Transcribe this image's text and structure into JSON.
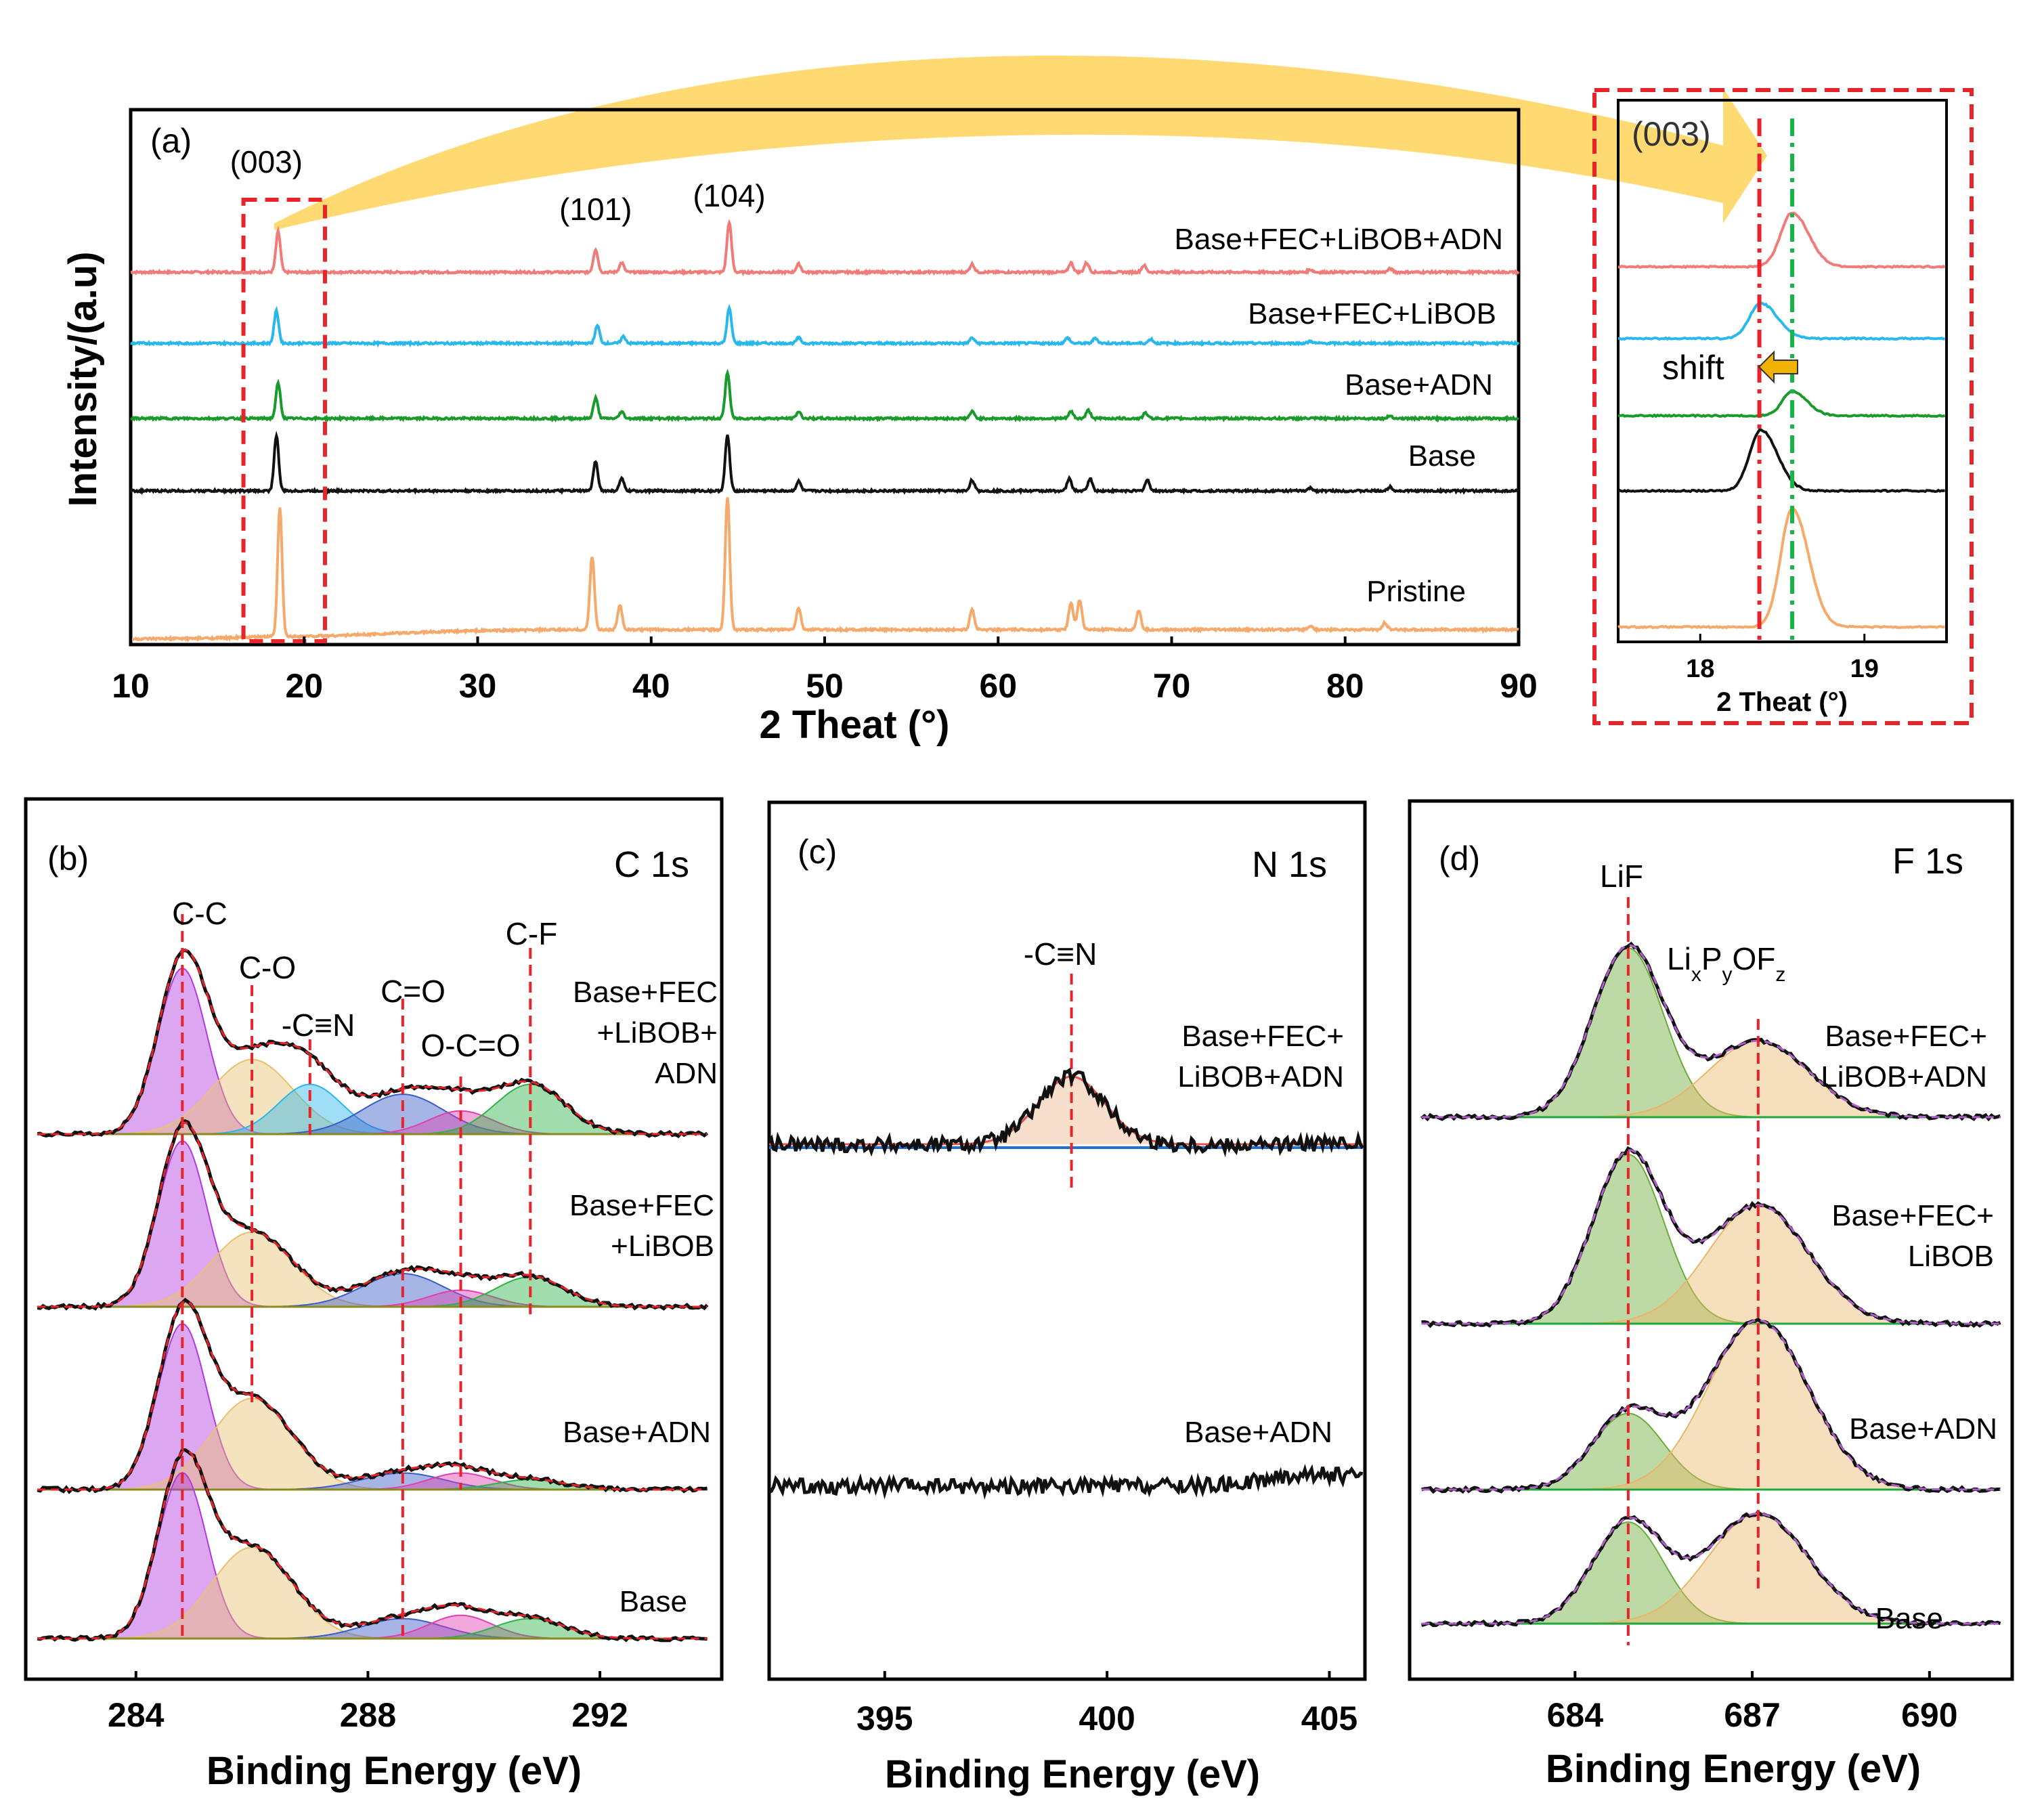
{
  "chart_data": [
    {
      "id": "a",
      "type": "line",
      "panel_label": "(a)",
      "xlabel": "2 Theat (°)",
      "ylabel": "Intensity/(a.u)",
      "xlim": [
        10,
        90
      ],
      "xticks": [
        10,
        20,
        30,
        40,
        50,
        60,
        70,
        80,
        90
      ],
      "peak_annotations": [
        {
          "label": "(003)",
          "x": 18.6
        },
        {
          "label": "(101)",
          "x": 36.8
        },
        {
          "label": "(104)",
          "x": 44.5
        }
      ],
      "highlight_box": {
        "x_range": [
          16.5,
          21.2
        ]
      },
      "series": [
        {
          "name": "Base+FEC+LiBOB+ADN",
          "color": "#f07b78",
          "peaks": [
            [
              18.5,
              60
            ],
            [
              36.8,
              34
            ],
            [
              38.3,
              14
            ],
            [
              44.5,
              74
            ],
            [
              48.5,
              12
            ],
            [
              58.5,
              12
            ],
            [
              64.2,
              14
            ],
            [
              65.1,
              14
            ],
            [
              68.4,
              10
            ],
            [
              78,
              4
            ],
            [
              82.6,
              5
            ]
          ]
        },
        {
          "name": "Base+FEC+LiBOB",
          "color": "#29b8ee",
          "peaks": [
            [
              18.4,
              48
            ],
            [
              36.9,
              26
            ],
            [
              38.4,
              10
            ],
            [
              44.5,
              52
            ],
            [
              48.5,
              8
            ],
            [
              58.5,
              8
            ],
            [
              64.0,
              8
            ],
            [
              65.6,
              8
            ],
            [
              68.8,
              6
            ],
            [
              78,
              3
            ]
          ]
        },
        {
          "name": "Base+ADN",
          "color": "#1a9a2a",
          "peaks": [
            [
              18.5,
              52
            ],
            [
              36.8,
              30
            ],
            [
              38.3,
              10
            ],
            [
              44.4,
              68
            ],
            [
              48.5,
              10
            ],
            [
              58.5,
              10
            ],
            [
              64.2,
              10
            ],
            [
              65.2,
              12
            ],
            [
              68.5,
              8
            ],
            [
              82.6,
              4
            ]
          ]
        },
        {
          "name": "Base",
          "color": "#111111",
          "peaks": [
            [
              18.4,
              82
            ],
            [
              36.8,
              44
            ],
            [
              38.3,
              18
            ],
            [
              44.4,
              82
            ],
            [
              48.5,
              14
            ],
            [
              58.5,
              16
            ],
            [
              64.1,
              18
            ],
            [
              65.3,
              18
            ],
            [
              68.6,
              16
            ],
            [
              78,
              4
            ],
            [
              82.6,
              6
            ]
          ]
        },
        {
          "name": "Pristine",
          "color": "#f5a96a",
          "peaks": [
            [
              18.6,
              190
            ],
            [
              36.6,
              108
            ],
            [
              38.2,
              36
            ],
            [
              44.4,
              196
            ],
            [
              48.5,
              32
            ],
            [
              58.5,
              30
            ],
            [
              64.2,
              40
            ],
            [
              64.7,
              44
            ],
            [
              68.1,
              28
            ],
            [
              78,
              6
            ],
            [
              82.3,
              10
            ]
          ]
        }
      ]
    },
    {
      "id": "a-inset",
      "type": "line",
      "panel_label": "(003)",
      "xlabel": "2 Theat (°)",
      "xlim": [
        17.5,
        19.5
      ],
      "xticks": [
        18,
        19
      ],
      "reference_lines": [
        {
          "x": 18.36,
          "color": "#e8232a",
          "style": "dash-dot"
        },
        {
          "x": 18.56,
          "color": "#19b34a",
          "style": "dash-dot"
        }
      ],
      "annotation": "shift",
      "series": [
        {
          "name": "Base+FEC+LiBOB+ADN",
          "color": "#f07b78",
          "peak_x": 18.56
        },
        {
          "name": "Base+FEC+LiBOB",
          "color": "#29b8ee",
          "peak_x": 18.37
        },
        {
          "name": "Base+ADN",
          "color": "#1a9a2a",
          "peak_x": 18.56
        },
        {
          "name": "Base",
          "color": "#111111",
          "peak_x": 18.37
        },
        {
          "name": "Pristine",
          "color": "#f5a96a",
          "peak_x": 18.56
        }
      ]
    },
    {
      "id": "b",
      "type": "area",
      "panel_label": "(b)",
      "core_level": "C 1s",
      "xlabel": "Binding Energy (eV)",
      "xlim": [
        282.1,
        294.1
      ],
      "xticks": [
        284,
        288,
        292
      ],
      "components": [
        {
          "label": "C-C",
          "center": 284.8,
          "color": "#b23ae0"
        },
        {
          "label": "C-O",
          "center": 286.0,
          "color": "#e8c070"
        },
        {
          "label": "-C≡N",
          "center": 287.0,
          "color": "#2ab6ea"
        },
        {
          "label": "C=O",
          "center": 288.6,
          "color": "#3a5cc8"
        },
        {
          "label": "O-C=O",
          "center": 289.6,
          "color": "#e040b0"
        },
        {
          "label": "C-F",
          "center": 290.8,
          "color": "#2fb24a"
        }
      ],
      "series": [
        {
          "name": "Base+FEC+LiBOB+ADN",
          "amplitudes": [
            1.0,
            0.45,
            0.3,
            0.24,
            0.14,
            0.3
          ]
        },
        {
          "name": "Base+FEC+LiBOB",
          "amplitudes": [
            1.0,
            0.45,
            0.0,
            0.2,
            0.1,
            0.18
          ]
        },
        {
          "name": "Base+ADN",
          "amplitudes": [
            1.0,
            0.55,
            0.0,
            0.1,
            0.1,
            0.06
          ]
        },
        {
          "name": "Base",
          "amplitudes": [
            1.0,
            0.55,
            0.0,
            0.12,
            0.14,
            0.12
          ]
        }
      ]
    },
    {
      "id": "c",
      "type": "line",
      "panel_label": "(c)",
      "core_level": "N 1s",
      "xlabel": "Binding Energy (eV)",
      "xlim": [
        392.4,
        405.8
      ],
      "xticks": [
        395,
        400,
        405
      ],
      "annotation": {
        "label": "-C≡N",
        "x": 399.2
      },
      "series": [
        {
          "name": "Base+FEC+LiBOB+ADN",
          "peak_x": 399.2,
          "peak_height": 1.0
        },
        {
          "name": "Base+ADN",
          "peak_x": null,
          "peak_height": 0
        }
      ]
    },
    {
      "id": "d",
      "type": "area",
      "panel_label": "(d)",
      "core_level": "F 1s",
      "xlabel": "Binding Energy (eV)",
      "xlim": [
        681.2,
        691.4
      ],
      "xticks": [
        684,
        687,
        690
      ],
      "components": [
        {
          "label": "LiF",
          "center": 684.9,
          "color": "#6aab3a"
        },
        {
          "label": "LixPyOFz",
          "center": 687.1,
          "color": "#e8b86a"
        }
      ],
      "series": [
        {
          "name": "Base+FEC+LiBOB+ADN",
          "amplitudes": [
            1.0,
            0.45
          ]
        },
        {
          "name": "Base+FEC+LiBOB",
          "amplitudes": [
            1.0,
            0.7
          ]
        },
        {
          "name": "Base+ADN",
          "amplitudes": [
            0.45,
            1.0
          ]
        },
        {
          "name": "Base",
          "amplitudes": [
            0.6,
            0.65
          ]
        }
      ]
    }
  ],
  "text": {
    "a": {
      "ylabel": "Intensity/(a.u)",
      "xlabel": "2 Theat (°)",
      "letter": "(a)",
      "peaks": [
        "(003)",
        "(101)",
        "(104)"
      ],
      "series": [
        "Base+FEC+LiBOB+ADN",
        "Base+FEC+LiBOB",
        "Base+ADN",
        "Base",
        "Pristine"
      ]
    },
    "inset": {
      "title": "(003)",
      "xlabel": "2 Theat (°)",
      "shift": "shift"
    },
    "b": {
      "letter": "(b)",
      "core": "C 1s",
      "xlabel": "Binding Energy (eV)",
      "components": [
        "C-C",
        "C-O",
        "-C≡N",
        "C=O",
        "O-C=O",
        "C-F"
      ],
      "series_lines": [
        [
          "Base+FEC",
          "+LiBOB+",
          "ADN"
        ],
        [
          "Base+FEC",
          "+LiBOB"
        ],
        [
          "Base+ADN"
        ],
        [
          "Base"
        ]
      ]
    },
    "c": {
      "letter": "(c)",
      "core": "N 1s",
      "xlabel": "Binding Energy (eV)",
      "component": "-C≡N",
      "series_lines": [
        [
          "Base+FEC+",
          "LiBOB+ADN"
        ],
        [
          "Base+ADN"
        ]
      ]
    },
    "d": {
      "letter": "(d)",
      "core": "F 1s",
      "xlabel": "Binding Energy (eV)",
      "components": [
        "LiF",
        "LixPyOFz"
      ],
      "series_lines": [
        [
          "Base+FEC+",
          "LiBOB+ADN"
        ],
        [
          "Base+FEC+",
          "LiBOB"
        ],
        [
          "Base+ADN"
        ],
        [
          "Base"
        ]
      ]
    }
  }
}
